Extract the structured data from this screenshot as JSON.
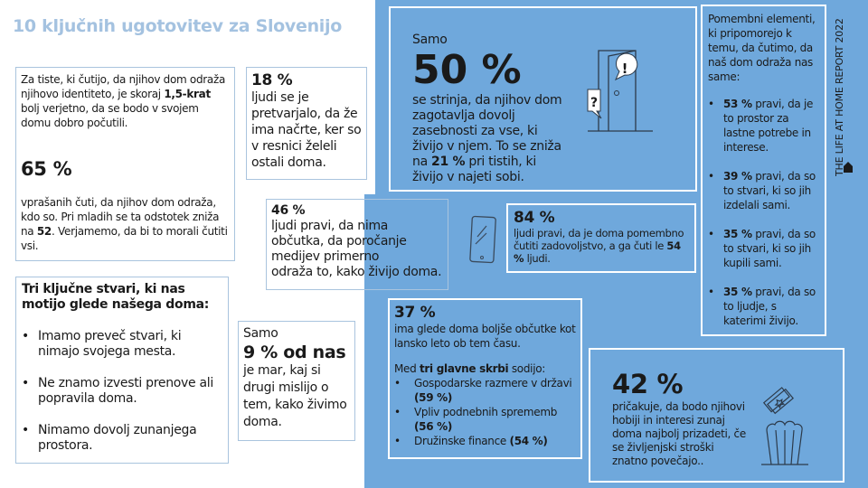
{
  "title": "10 ključnih ugotovitev za Slovenijo",
  "side_label": "THE LIFE AT HOME REPORT 2022",
  "colors": {
    "accent_blue": "#6fa8dc",
    "title": "#a4c2e0",
    "border": "#a9c4de"
  },
  "icons": [
    "home-icon",
    "door-icon",
    "speech-bubble-exclamation-icon",
    "speech-bubble-question-icon",
    "smartphone-icon",
    "ticket-icon",
    "popcorn-icon"
  ],
  "identity": {
    "p1_a": "Za tiste, ki čutijo, da njihov dom odraža njihovo identiteto, je skoraj ",
    "p1_b": "1,5-krat",
    "p1_c": " bolj verjetno, da se bodo v svojem domu dobro počutili.",
    "stat": "65 %",
    "p2_a": "vprašanih čuti, da njihov dom odraža, kdo so. Pri mladih se ta odstotek zniža na ",
    "p2_b": "52",
    "p2_c": ". Verjamemo, da bi to morali čutiti vsi."
  },
  "pretend": {
    "stat": "18 %",
    "text": "ljudi se je pretvarjalo, da že ima načrte, ker so v resnici želeli ostali doma."
  },
  "media": {
    "stat": "46 %",
    "line1": "ljudi pravi, da nima občutka, da poročanje medijev primerno",
    "line2": "odraža to, kako živijo doma."
  },
  "privacy": {
    "pre": "Samo",
    "stat": "50 %",
    "t_a": "se strinja, da njihov dom zagotavlja dovolj zasebnosti za vse, ki živijo v njem. To se zniža na ",
    "t_b": "21 %",
    "t_c": " pri tistih, ki živijo v najeti sobi."
  },
  "satisfaction": {
    "stat": "84 %",
    "t_a": "ljudi pravi, da je doma pomembno čutiti zadovoljstvo, a ga čuti le ",
    "t_b": "54 %",
    "t_c": " ljudi."
  },
  "elements": {
    "intro": "Pomembni elementi, ki pripomorejo k temu, da čutimo, da naš dom odraža nas same:",
    "items": [
      {
        "pct": "53 %",
        "text": " pravi, da je to prostor za lastne potrebe in interese."
      },
      {
        "pct": "39 %",
        "text": " pravi, da so to stvari, ki so jih izdelali sami."
      },
      {
        "pct": "35 %",
        "text": " pravi, da so to stvari, ki so jih kupili sami."
      },
      {
        "pct": "35 %",
        "text": " pravi, da so to ljudje, s katerimi živijo."
      }
    ]
  },
  "worries": {
    "heading": "Tri ključne stvari, ki nas motijo glede našega doma:",
    "items": [
      "Imamo preveč stvari, ki nimajo svojega mesta.",
      "Ne znamo izvesti prenove ali popravila doma.",
      "Nimamo dovolj zunanjega prostora."
    ]
  },
  "others": {
    "pre": "Samo",
    "stat": "9 % od nas",
    "text": "je mar, kaj si drugi mislijo o tem, kako živimo doma."
  },
  "better": {
    "stat": "37 %",
    "text": "ima glede doma boljše občutke kot lansko leto ob tem času.",
    "med_a": "Med ",
    "med_b": "tri glavne skrbi",
    "med_c": " sodijo:",
    "items": [
      {
        "text": "Gospodarske razmere v državi ",
        "pct": "(59 %)"
      },
      {
        "text": "Vpliv podnebnih sprememb ",
        "pct": "(56 %)"
      },
      {
        "text": "Družinske finance ",
        "pct": "(54 %)"
      }
    ]
  },
  "hobbies": {
    "stat": "42 %",
    "text": "pričakuje, da bodo njihovi hobiji in interesi zunaj doma najbolj prizadeti, če se življenjski stroški znatno povečajo.."
  }
}
